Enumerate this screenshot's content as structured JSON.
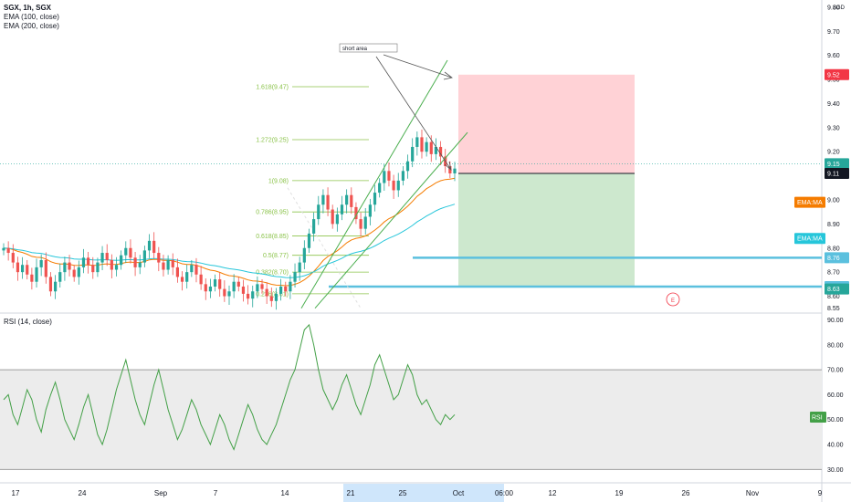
{
  "header": {
    "symbol": "SGX, 1h, SGX",
    "indicators": [
      "EMA (100, close)",
      "EMA (200, close)"
    ],
    "currency": "SGD"
  },
  "rsi_panel": {
    "title": "RSI (14, close)",
    "label": "RSI"
  },
  "annotation": {
    "note": "short area",
    "event_marker": "E"
  },
  "colors": {
    "candle_up": "#26a69a",
    "candle_down": "#ef5350",
    "ema100": "#f57c00",
    "ema200": "#26c6da",
    "fib": "#8bc34a",
    "channel": "#4caf50",
    "stop_zone": "#ffcdd2",
    "target_zone": "#c8e6c9",
    "rsi_line": "#43a047",
    "rsi_band": "#ececec",
    "hline": "#5bc0de",
    "price_tag_green": "#26a69a",
    "price_tag_red": "#f23645",
    "price_tag_dark": "#131722"
  },
  "chart_data": [
    {
      "type": "candlestick",
      "title": "SGX, 1h, SGX",
      "price_axis": {
        "ticks": [
          "9.80",
          "9.70",
          "9.60",
          "9.50",
          "9.40",
          "9.30",
          "9.20",
          "9.10",
          "9.00",
          "8.90",
          "8.80",
          "8.70",
          "8.60",
          "8.55"
        ],
        "ylim": [
          8.53,
          9.83
        ],
        "unit": "SGD"
      },
      "time_axis": {
        "ticks": [
          "17",
          "24",
          "Sep",
          "7",
          "14",
          "21",
          "25",
          "Oct",
          "06:00",
          "12",
          "19",
          "26",
          "Nov",
          "9"
        ]
      },
      "price_labels": [
        {
          "text": "9.52",
          "value": 9.52,
          "color": "red"
        },
        {
          "text": "9.15",
          "value": 9.15,
          "color": "green"
        },
        {
          "text": "9.11",
          "value": 9.11,
          "color": "dark"
        },
        {
          "text": "EMA:MA",
          "value": 8.99,
          "color": "ema100"
        },
        {
          "text": "EMA:MA",
          "value": 8.84,
          "color": "ema200"
        },
        {
          "text": "8.76",
          "value": 8.76,
          "color": "hline"
        },
        {
          "text": "8.64",
          "value": 8.64,
          "color": "hline"
        },
        {
          "text": "8.63",
          "value": 8.63,
          "color": "green"
        }
      ],
      "fibonacci": [
        {
          "label": "1.618(9.47)",
          "value": 9.47
        },
        {
          "label": "1.272(9.25)",
          "value": 9.25
        },
        {
          "label": "1(9.08)",
          "value": 9.08
        },
        {
          "label": "0.786(8.95)",
          "value": 8.95
        },
        {
          "label": "0.618(8.85)",
          "value": 8.85
        },
        {
          "label": "0.5(8.77)",
          "value": 8.77
        },
        {
          "label": "0.382(8.70)",
          "value": 8.7
        },
        {
          "label": "0.236(8.61)",
          "value": 8.61
        }
      ],
      "horizontal_lines": [
        8.76,
        8.64
      ],
      "position": {
        "entry": 9.11,
        "stop": 9.52,
        "target": 8.64
      },
      "series_close": [
        8.8,
        8.78,
        8.74,
        8.7,
        8.73,
        8.69,
        8.66,
        8.72,
        8.75,
        8.68,
        8.62,
        8.66,
        8.7,
        8.74,
        8.71,
        8.68,
        8.72,
        8.76,
        8.73,
        8.7,
        8.74,
        8.78,
        8.75,
        8.71,
        8.73,
        8.77,
        8.8,
        8.76,
        8.72,
        8.74,
        8.79,
        8.83,
        8.78,
        8.74,
        8.71,
        8.75,
        8.72,
        8.68,
        8.66,
        8.7,
        8.73,
        8.69,
        8.65,
        8.62,
        8.64,
        8.67,
        8.63,
        8.6,
        8.62,
        8.66,
        8.64,
        8.61,
        8.59,
        8.62,
        8.65,
        8.63,
        8.6,
        8.58,
        8.61,
        8.64,
        8.62,
        8.66,
        8.7,
        8.74,
        8.8,
        8.86,
        8.92,
        8.98,
        9.02,
        8.96,
        8.9,
        8.94,
        8.98,
        9.02,
        8.97,
        8.92,
        8.88,
        8.93,
        8.98,
        9.03,
        9.07,
        9.12,
        9.08,
        9.04,
        9.08,
        9.12,
        9.16,
        9.22,
        9.26,
        9.2,
        9.24,
        9.19,
        9.22,
        9.18,
        9.14,
        9.11,
        9.13
      ]
    },
    {
      "type": "line",
      "title": "RSI (14, close)",
      "ticks": [
        "90.00",
        "80.00",
        "70.00",
        "60.00",
        "50.00",
        "40.00",
        "30.00"
      ],
      "ylim": [
        25,
        92
      ],
      "band": [
        30,
        70
      ],
      "values": [
        58,
        60,
        52,
        48,
        55,
        62,
        58,
        50,
        45,
        54,
        60,
        65,
        58,
        50,
        46,
        42,
        48,
        55,
        60,
        52,
        44,
        40,
        46,
        54,
        62,
        68,
        74,
        66,
        58,
        52,
        48,
        56,
        64,
        70,
        62,
        54,
        48,
        42,
        46,
        52,
        58,
        54,
        48,
        44,
        40,
        46,
        52,
        48,
        42,
        38,
        44,
        50,
        56,
        52,
        46,
        42,
        40,
        44,
        48,
        54,
        60,
        66,
        70,
        78,
        86,
        88,
        80,
        70,
        62,
        58,
        54,
        58,
        64,
        68,
        62,
        56,
        52,
        58,
        64,
        72,
        76,
        70,
        64,
        58,
        60,
        66,
        72,
        68,
        60,
        56,
        58,
        54,
        50,
        48,
        52,
        50,
        52
      ]
    }
  ]
}
